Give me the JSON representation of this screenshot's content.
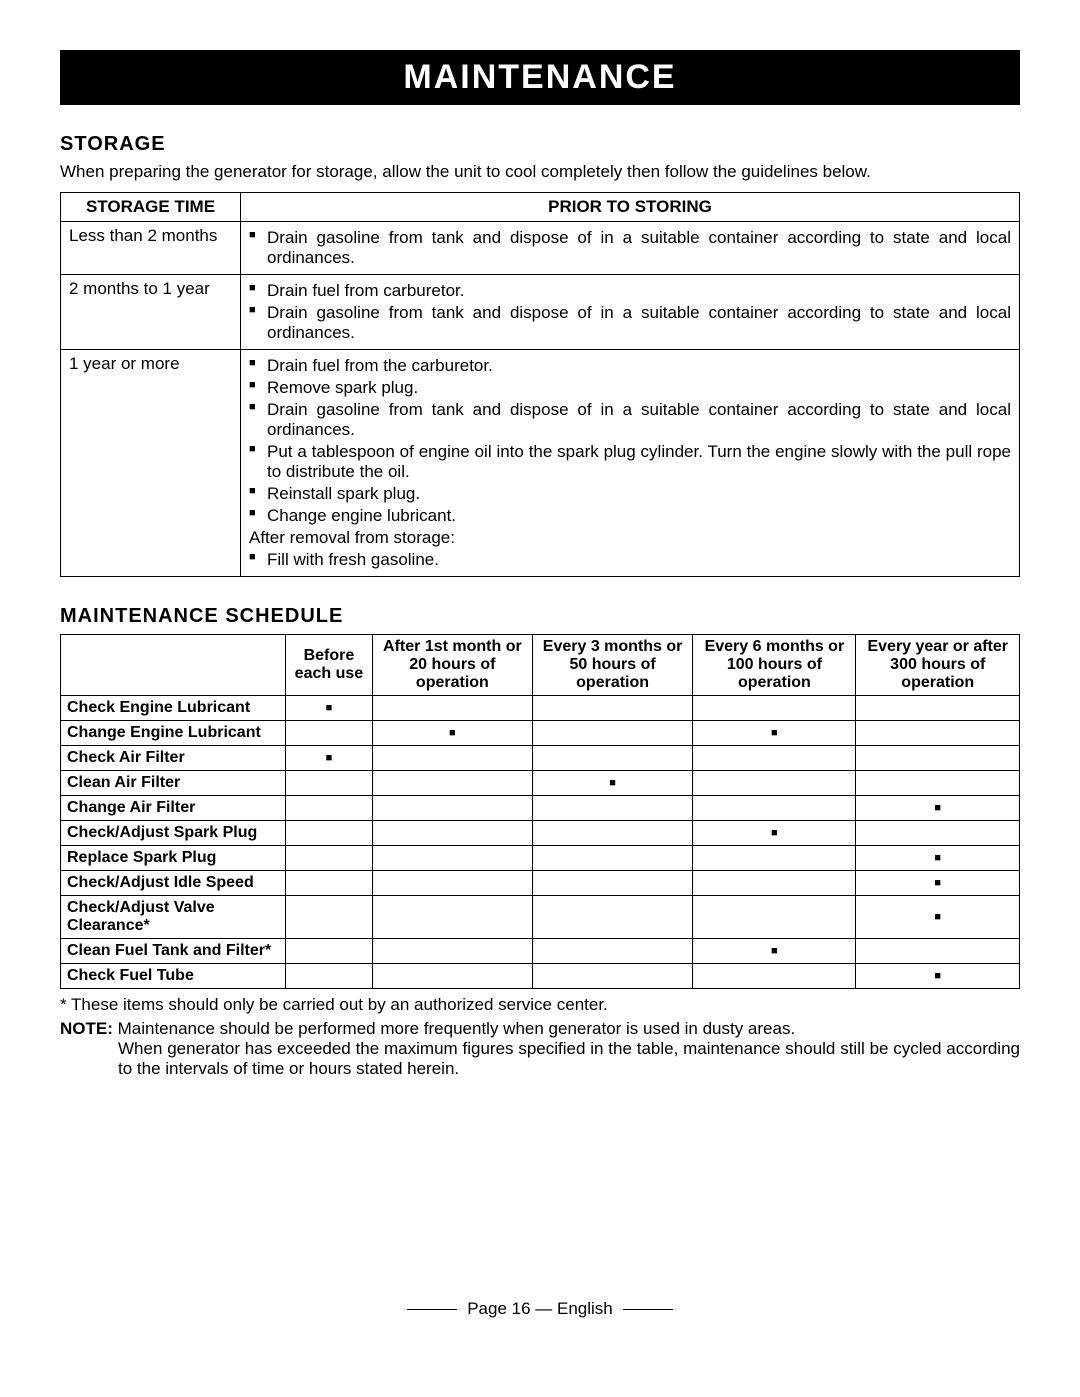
{
  "banner": "MAINTENANCE",
  "storage": {
    "heading": "STORAGE",
    "intro": "When preparing the generator for storage, allow the unit to cool completely then follow the guidelines below.",
    "col1": "STORAGE TIME",
    "col2": "PRIOR TO STORING",
    "rows": [
      {
        "time": "Less than 2 months",
        "bullets": [
          "Drain gasoline from tank and dispose of in a suitable container according to state and local ordinances."
        ]
      },
      {
        "time": "2 months to 1 year",
        "bullets": [
          "Drain fuel from carburetor.",
          "Drain gasoline from tank and dispose of in a suitable container according to state and local ordinances."
        ]
      },
      {
        "time": "1 year or more",
        "bullets": [
          "Drain fuel from the carburetor.",
          "Remove spark plug.",
          "Drain gasoline from tank and dispose of in a suitable container according to state and local ordinances.",
          "Put a tablespoon of engine oil into the spark plug cylinder. Turn the engine slowly with the pull rope to distribute the oil.",
          "Reinstall spark plug.",
          "Change engine lubricant."
        ],
        "plain": "After removal from storage:",
        "bullets2": [
          "Fill with fresh gasoline."
        ]
      }
    ]
  },
  "schedule": {
    "heading": "MAINTENANCE SCHEDULE",
    "cols": [
      "Before each use",
      "After 1st month or 20 hours of operation",
      "Every 3 months or 50 hours of operation",
      "Every 6 months or 100 hours of operation",
      "Every year or after 300 hours of operation"
    ],
    "tasks": [
      {
        "name": "Check Engine Lubricant",
        "marks": [
          1,
          0,
          0,
          0,
          0
        ]
      },
      {
        "name": "Change Engine Lubricant",
        "marks": [
          0,
          1,
          0,
          1,
          0
        ]
      },
      {
        "name": "Check Air Filter",
        "marks": [
          1,
          0,
          0,
          0,
          0
        ]
      },
      {
        "name": "Clean Air Filter",
        "marks": [
          0,
          0,
          1,
          0,
          0
        ]
      },
      {
        "name": "Change Air Filter",
        "marks": [
          0,
          0,
          0,
          0,
          1
        ]
      },
      {
        "name": "Check/Adjust Spark Plug",
        "marks": [
          0,
          0,
          0,
          1,
          0
        ]
      },
      {
        "name": "Replace Spark Plug",
        "marks": [
          0,
          0,
          0,
          0,
          1
        ]
      },
      {
        "name": "Check/Adjust Idle Speed",
        "marks": [
          0,
          0,
          0,
          0,
          1
        ]
      },
      {
        "name": "Check/Adjust Valve Clearance*",
        "marks": [
          0,
          0,
          0,
          0,
          1
        ]
      },
      {
        "name": "Clean Fuel Tank and Filter*",
        "marks": [
          0,
          0,
          0,
          1,
          0
        ]
      },
      {
        "name": "Check Fuel Tube",
        "marks": [
          0,
          0,
          0,
          0,
          1
        ]
      }
    ],
    "footnote": "* These items should only be carried out by an authorized service center.",
    "note_label": "NOTE:",
    "note1": " Maintenance should be performed more frequently when generator is used in dusty areas.",
    "note2": "When generator has exceeded the maximum figures specified in the table, maintenance should still be cycled according to the intervals of time or hours stated herein."
  },
  "footer": "Page 16  — English"
}
